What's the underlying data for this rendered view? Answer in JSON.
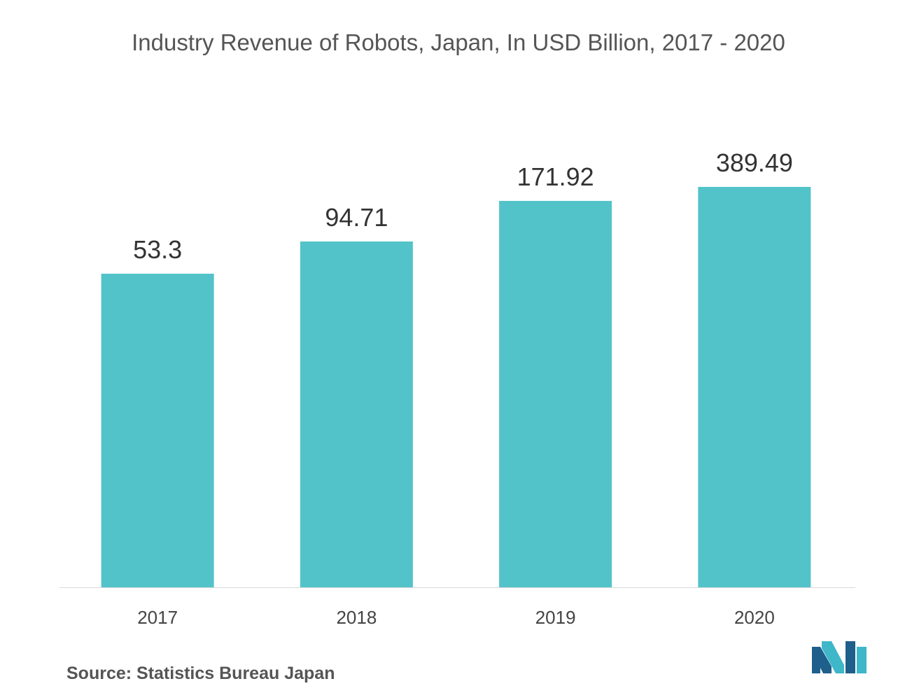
{
  "chart_data": {
    "type": "bar",
    "title": "Industry Revenue of Robots, Japan, In USD Billion, 2017 - 2020",
    "categories": [
      "2017",
      "2018",
      "2019",
      "2020"
    ],
    "values": [
      53.3,
      94.71,
      171.92,
      389.49
    ],
    "value_labels": [
      "53.3",
      "94.71",
      "171.92",
      "389.49"
    ],
    "xlabel": "",
    "ylabel": "",
    "bar_color": "#52c3c9",
    "axis_color": "#d9d9d9",
    "grid": false,
    "legend": "none"
  },
  "footer": {
    "source": "Source: Statistics  Bureau Japan"
  },
  "logo": {
    "icon": "mordor-intelligence-logo-icon",
    "colors": [
      "#1f5f8b",
      "#3eb7c8"
    ]
  }
}
